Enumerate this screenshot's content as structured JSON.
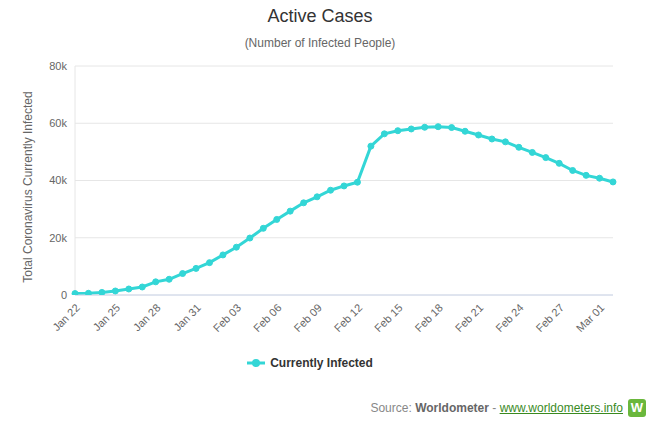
{
  "chart_data": {
    "type": "line",
    "title": "Active Cases",
    "subtitle": "(Number of Infected People)",
    "y_label": "Total Coronavirus Currently Infected",
    "categories": [
      "Jan 22",
      null,
      null,
      "Jan 25",
      null,
      null,
      "Jan 28",
      null,
      null,
      "Jan 31",
      null,
      null,
      "Feb 03",
      null,
      null,
      "Feb 06",
      null,
      null,
      "Feb 09",
      null,
      null,
      "Feb 12",
      null,
      null,
      "Feb 15",
      null,
      null,
      "Feb 18",
      null,
      null,
      "Feb 21",
      null,
      null,
      "Feb 24",
      null,
      null,
      "Feb 27",
      null,
      null,
      "Mar 01",
      null
    ],
    "series": [
      {
        "name": "Currently Infected",
        "color": "#33d6d6",
        "marker": "circle",
        "values": [
          500,
          600,
          900,
          1400,
          2100,
          2800,
          4600,
          5500,
          7500,
          9300,
          11300,
          14000,
          16700,
          19900,
          23300,
          26400,
          29300,
          32200,
          34300,
          36600,
          38100,
          39400,
          52000,
          56300,
          57400,
          58000,
          58600,
          58800,
          58500,
          57200,
          55900,
          54500,
          53500,
          51600,
          49800,
          48000,
          46000,
          43500,
          41800,
          40800,
          39500
        ]
      }
    ],
    "ylim": [
      0,
      80000
    ],
    "yticks": [
      0,
      {
        "value": 20000,
        "label": "20k"
      },
      {
        "value": 40000,
        "label": "40k"
      },
      {
        "value": 60000,
        "label": "60k"
      },
      {
        "value": 80000,
        "label": "80k"
      }
    ],
    "grid": true,
    "legend": "bottom",
    "source": [
      "Source:",
      "Worldometer",
      "-",
      "www.worldometers.info"
    ],
    "logo": "W"
  }
}
